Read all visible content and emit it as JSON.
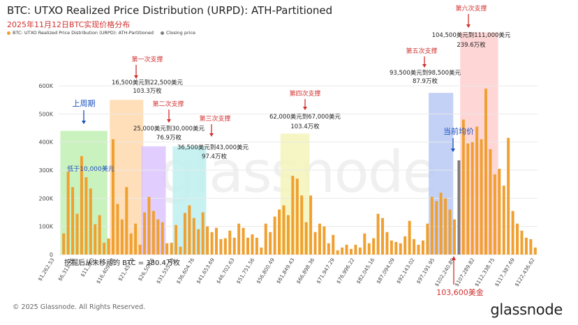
{
  "header": {
    "title": "BTC: UTXO Realized Price Distribution (URPD): ATH-Partitioned",
    "subtitle": "2025年11月12日BTC实现价格分布"
  },
  "legend": {
    "items": [
      {
        "label": "BTC: UTXO Realized Price Distribution (URPD): ATH-Partitioned",
        "color": "#f0a030"
      },
      {
        "label": "Closing price",
        "color": "#808080"
      }
    ]
  },
  "footer": {
    "copyright": "© 2025 Glassnode. All Rights Reserved.",
    "logo": "glassnode",
    "watermark": "glassnode"
  },
  "annotations": {
    "first_support": "第一次支撑",
    "first_range": "16,500美元到22,500美元",
    "first_amount": "103.3万枚",
    "second_support": "第二次支撑",
    "second_range": "25,000美元到30,000美元",
    "second_amount": "76.9万枚",
    "third_support": "第三次支撑",
    "third_range": "36,500美元到43,000美元",
    "third_amount": "97.4万枚",
    "fourth_support": "第四次支撑",
    "fourth_range": "62,000美元到67,000美元",
    "fourth_amount": "103.4万枚",
    "fifth_support": "第五次支撑",
    "fifth_range": "93,500美元到98,500美元",
    "fifth_amount": "87.9万枚",
    "sixth_support": "第六次支撑",
    "sixth_range": "104,500美元到111,000美元",
    "sixth_amount": "239.6万枚",
    "last_cycle": "上周期",
    "below_10k": "低于10,000美元",
    "current_avg": "当前均价",
    "current_price": "103,600美金",
    "unmoved": "挖掘后从未移动的 BTC = 380.4万枚"
  },
  "chart_data": {
    "type": "bar",
    "title": "BTC: UTXO Realized Price Distribution (URPD): ATH-Partitioned",
    "subtitle": "2025年11月12日BTC实现价格分布",
    "y_ticks": [
      "0",
      "100K",
      "200K",
      "300K",
      "400K",
      "500K",
      "600K"
    ],
    "ylim": [
      0,
      620000
    ],
    "grid": true,
    "legend_position": "top-left",
    "x_tick_labels": [
      "$1,262.53",
      "$6,311.16",
      "$11,360",
      "$16,409.13",
      "$21,457.9",
      "$26,506.5",
      "$31,555.30",
      "$36,604.76",
      "$41,653.69",
      "$46,702.63",
      "$51,751.56",
      "$56,800.49",
      "$61,849.43",
      "$66,898.36",
      "$71,947.29",
      "$76,996.22",
      "$82,045.16",
      "$87,094.09",
      "$92,143.02",
      "$97,191.95",
      "$102,240.89",
      "$107,289.82",
      "$112,338.75",
      "$117,387.69",
      "$122,436.62"
    ],
    "values": [
      75000,
      295000,
      240000,
      145000,
      350000,
      275000,
      235000,
      108000,
      140000,
      42000,
      57000,
      410000,
      180000,
      125000,
      240000,
      75000,
      110000,
      35000,
      150000,
      205000,
      155000,
      125000,
      115000,
      40000,
      42000,
      105000,
      28000,
      148000,
      175000,
      130000,
      90000,
      150000,
      100000,
      80000,
      95000,
      55000,
      58000,
      85000,
      60000,
      110000,
      95000,
      60000,
      72000,
      60000,
      25000,
      110000,
      80000,
      135000,
      160000,
      175000,
      140000,
      280000,
      270000,
      210000,
      115000,
      210000,
      80000,
      110000,
      100000,
      40000,
      70000,
      15000,
      25000,
      35000,
      20000,
      35000,
      25000,
      75000,
      40000,
      58000,
      145000,
      130000,
      80000,
      50000,
      45000,
      40000,
      65000,
      120000,
      55000,
      35000,
      50000,
      110000,
      205000,
      190000,
      220000,
      200000,
      160000,
      125000,
      385000,
      480000,
      395000,
      400000,
      455000,
      410000,
      590000,
      375000,
      285000,
      305000,
      245000,
      415000,
      155000,
      110000,
      85000,
      60000,
      55000,
      25000
    ],
    "closing_price_index": 88,
    "closing_price_value": 335000
  }
}
